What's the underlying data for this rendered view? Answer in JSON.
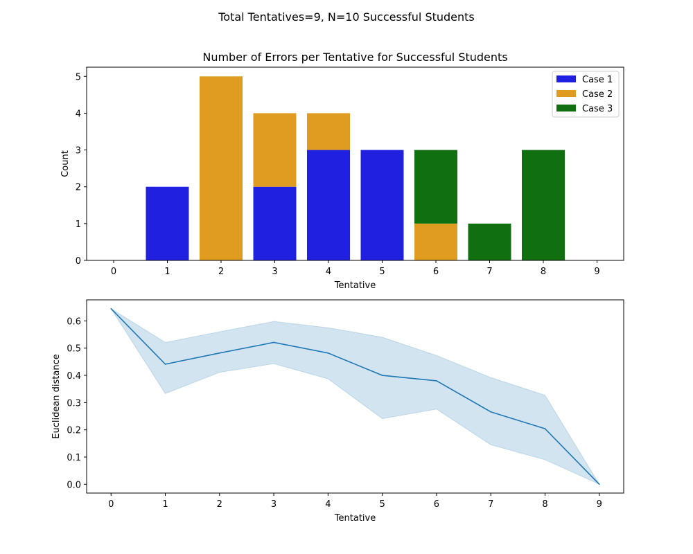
{
  "figure": {
    "suptitle": "Total Tentatives=9, N=10 Successful Students"
  },
  "chart_data": [
    {
      "type": "bar",
      "stacked": true,
      "title": "Number of Errors per Tentative for Successful Students",
      "xlabel": "Tentative",
      "ylabel": "Count",
      "categories": [
        0,
        1,
        2,
        3,
        4,
        5,
        6,
        7,
        8,
        9
      ],
      "series": [
        {
          "name": "Case 1",
          "color": "#2020e0",
          "values": [
            0,
            2,
            0,
            2,
            3,
            3,
            0,
            0,
            0,
            0
          ]
        },
        {
          "name": "Case 2",
          "color": "#e09c20",
          "values": [
            0,
            0,
            5,
            2,
            1,
            0,
            1,
            0,
            0,
            0
          ]
        },
        {
          "name": "Case 3",
          "color": "#107010",
          "values": [
            0,
            0,
            0,
            0,
            0,
            0,
            2,
            1,
            3,
            0
          ]
        }
      ],
      "ylim": [
        0,
        5.25
      ],
      "yticks": [
        0,
        1,
        2,
        3,
        4,
        5
      ],
      "legend": "top-right",
      "grid": false
    },
    {
      "type": "line",
      "xlabel": "Tentative",
      "ylabel": "Euclidean distance",
      "x": [
        0,
        1,
        2,
        3,
        4,
        5,
        6,
        7,
        8,
        9
      ],
      "series": [
        {
          "color": "#1f77b4",
          "values": [
            0.645,
            0.441,
            0.482,
            0.521,
            0.482,
            0.4,
            0.38,
            0.266,
            0.204,
            0.0
          ],
          "band_lower": [
            0.645,
            0.333,
            0.411,
            0.443,
            0.387,
            0.241,
            0.276,
            0.145,
            0.09,
            0.0
          ],
          "band_upper": [
            0.645,
            0.521,
            0.56,
            0.598,
            0.575,
            0.54,
            0.473,
            0.392,
            0.327,
            0.0
          ],
          "band_color": "#1f77b4"
        }
      ],
      "xlim": [
        -0.45,
        9.45
      ],
      "ylim": [
        -0.0323,
        0.6773
      ],
      "yticks": [
        0.0,
        0.1,
        0.2,
        0.3,
        0.4,
        0.5,
        0.6
      ],
      "xticks": [
        0,
        1,
        2,
        3,
        4,
        5,
        6,
        7,
        8,
        9
      ],
      "grid": false
    }
  ]
}
